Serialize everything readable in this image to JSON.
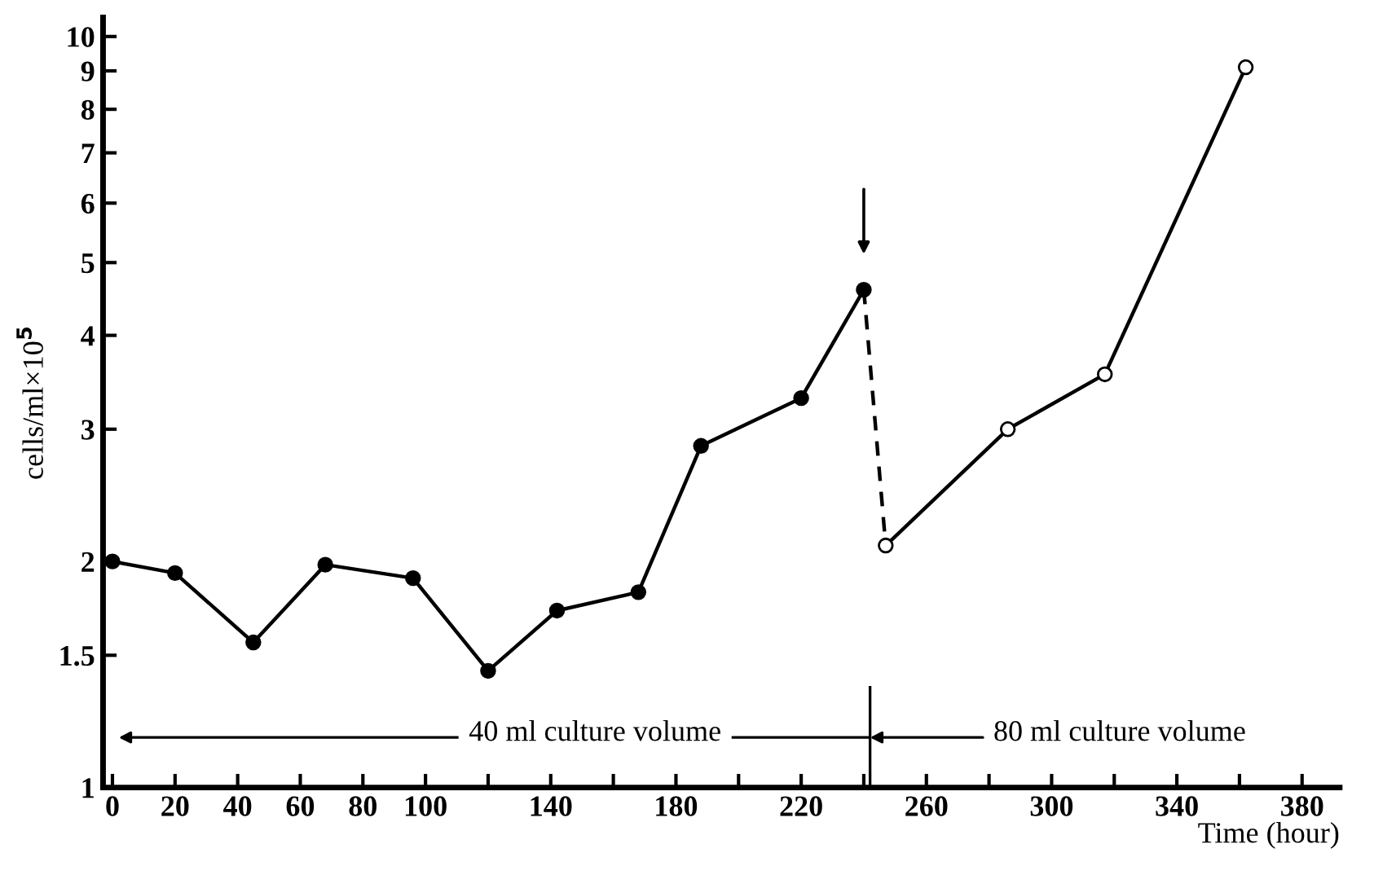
{
  "chart_data": {
    "type": "line",
    "xlabel": "Time (hour)",
    "ylabel": "cells/ml×10$^{5}$",
    "series": [
      {
        "color": "#000000",
        "marker": "circle",
        "line_style": "solid",
        "x": [
          0,
          20,
          45,
          68,
          96,
          120,
          142,
          168,
          188,
          220,
          240
        ],
        "values": [
          2.0,
          1.93,
          1.56,
          1.98,
          1.9,
          1.43,
          1.72,
          1.82,
          2.85,
          3.3,
          4.6
        ]
      },
      {
        "color": "#000000",
        "line_style": "dashed",
        "x": [
          240,
          247
        ],
        "values": [
          4.6,
          2.1
        ]
      },
      {
        "color": "#000000",
        "marker": "circle",
        "line_style": "solid",
        "x": [
          247,
          286,
          317,
          362
        ],
        "values": [
          2.1,
          3.0,
          3.55,
          9.1
        ]
      }
    ],
    "log": "y",
    "xlim": [
      -3,
      392
    ],
    "ylim": [
      1,
      10.6
    ],
    "xticks": [
      0,
      20,
      40,
      60,
      80,
      100,
      {
        "value": 120,
        "label": null
      },
      140,
      {
        "value": 160,
        "label": null
      },
      180,
      {
        "value": 200,
        "label": null
      },
      220,
      {
        "value": 240,
        "label": null
      },
      260,
      {
        "value": 280,
        "label": null
      },
      300,
      {
        "value": 320,
        "label": null
      },
      340,
      {
        "value": 360,
        "label": null
      },
      380
    ],
    "yticks": [
      1,
      1.5,
      2,
      3,
      4,
      5,
      6,
      7,
      8,
      9,
      10
    ],
    "annotations": [
      "40 ml culture volume",
      "80 ml culture volume"
    ],
    "grid": false,
    "legend": false
  }
}
